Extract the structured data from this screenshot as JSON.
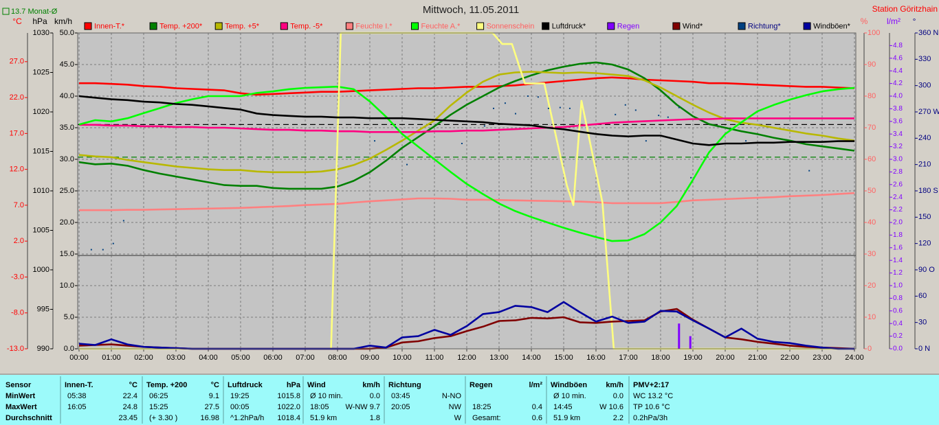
{
  "chart_data": {
    "type": "multi-axis-line",
    "title": "Mittwoch, 11.05.2011",
    "station_label": "Station Göritzhain",
    "xlim": [
      0,
      24
    ],
    "xticks": [
      {
        "value": 0,
        "label": "00:00"
      },
      {
        "value": 1,
        "label": "01:00"
      },
      {
        "value": 2,
        "label": "02:00"
      },
      {
        "value": 3,
        "label": "03:00"
      },
      {
        "value": 4,
        "label": "04:00"
      },
      {
        "value": 5,
        "label": "05:00"
      },
      {
        "value": 6,
        "label": "06:00"
      },
      {
        "value": 7,
        "label": "07:00"
      },
      {
        "value": 8,
        "label": "08:00"
      },
      {
        "value": 9,
        "label": "09:00"
      },
      {
        "value": 10,
        "label": "10:00"
      },
      {
        "value": 11,
        "label": "11:00"
      },
      {
        "value": 12,
        "label": "12:00"
      },
      {
        "value": 13,
        "label": "13:00"
      },
      {
        "value": 14,
        "label": "14:00"
      },
      {
        "value": 15,
        "label": "15:00"
      },
      {
        "value": 16,
        "label": "16:00"
      },
      {
        "value": 17,
        "label": "17:00"
      },
      {
        "value": 18,
        "label": "18:00"
      },
      {
        "value": 19,
        "label": "19:00"
      },
      {
        "value": 20,
        "label": "20:00"
      },
      {
        "value": 21,
        "label": "21:00"
      },
      {
        "value": 22,
        "label": "22:00"
      },
      {
        "value": 23,
        "label": "23:00"
      },
      {
        "value": 24,
        "label": "24:00"
      }
    ],
    "grid": true,
    "grid_axis": 2,
    "axes": [
      {
        "label": "°C",
        "color": "#ff0000",
        "lim": [
          -13,
          31
        ],
        "ticks": [
          {
            "value": -13,
            "label": "-13.0"
          },
          {
            "value": -8,
            "label": "-8.0"
          },
          {
            "value": -3,
            "label": "-3.0"
          },
          {
            "value": 2,
            "label": "2.0"
          },
          {
            "value": 7,
            "label": "7.0"
          },
          {
            "value": 12,
            "label": "12.0"
          },
          {
            "value": 17,
            "label": "17.0"
          },
          {
            "value": 22,
            "label": "22.0"
          },
          {
            "value": 27,
            "label": "27.0"
          }
        ]
      },
      {
        "label": "hPa",
        "color": "#000000",
        "lim": [
          990,
          1030
        ],
        "ticks": [
          990,
          995,
          1000,
          1005,
          1010,
          1015,
          1020,
          1025,
          1030
        ]
      },
      {
        "label": "km/h",
        "color": "#000000",
        "lim": [
          0,
          50
        ],
        "ticks": [
          {
            "value": 0,
            "label": "0.0"
          },
          {
            "value": 5,
            "label": "5.0"
          },
          {
            "value": 10,
            "label": "10.0"
          },
          {
            "value": 15,
            "label": "15.0"
          },
          {
            "value": 20,
            "label": "20.0"
          },
          {
            "value": 25,
            "label": "25.0"
          },
          {
            "value": 30,
            "label": "30.0"
          },
          {
            "value": 35,
            "label": "35.0"
          },
          {
            "value": 40,
            "label": "40.0"
          },
          {
            "value": 45,
            "label": "45.0"
          },
          {
            "value": 50,
            "label": "50.0"
          }
        ]
      },
      {
        "label": "%",
        "color": "#ff6060",
        "lim": [
          0,
          100
        ],
        "ticks": [
          0,
          10,
          20,
          30,
          40,
          50,
          60,
          70,
          80,
          90,
          100
        ]
      },
      {
        "label": "l/m²",
        "color": "#8000ff",
        "lim": [
          0,
          5
        ],
        "ticks": [
          {
            "value": 0,
            "label": "0.0"
          },
          0.2,
          0.4,
          0.6,
          0.8,
          {
            "value": 1,
            "label": "1.0"
          },
          1.2,
          1.4,
          1.6,
          1.8,
          {
            "value": 2,
            "label": "2.0"
          },
          2.2,
          2.4,
          2.6,
          2.8,
          {
            "value": 3,
            "label": "3.0"
          },
          3.2,
          3.4,
          3.6,
          3.8,
          {
            "value": 4,
            "label": "4.0"
          },
          4.2,
          4.4,
          4.6,
          4.8
        ]
      },
      {
        "label": "°",
        "color": "#000080",
        "lim": [
          0,
          360
        ],
        "ticks": [
          {
            "value": 0,
            "label": "0 N"
          },
          30,
          60,
          {
            "value": 90,
            "label": "90 O"
          },
          120,
          150,
          {
            "value": 180,
            "label": "180 S"
          },
          210,
          240,
          {
            "value": 270,
            "label": "270 W"
          },
          300,
          330,
          {
            "value": 360,
            "label": "360 N"
          }
        ]
      }
    ],
    "reference_lines": [
      {
        "value": 13.7,
        "label": "13.7 Monat-Ø",
        "axis": 0,
        "color": "#008000",
        "dashed": true
      },
      {
        "value": 1018.4,
        "axis": 1,
        "color": "#000000",
        "dashed": true
      },
      {
        "value": 0,
        "axis": 0,
        "color": "#505050",
        "dashed": false
      }
    ],
    "x": [
      0,
      0.5,
      1,
      1.5,
      2,
      2.5,
      3,
      3.5,
      4,
      4.5,
      5,
      5.5,
      6,
      6.5,
      7,
      7.5,
      8,
      8.5,
      9,
      9.5,
      10,
      10.5,
      11,
      11.5,
      12,
      12.5,
      13,
      13.5,
      14,
      14.5,
      15,
      15.5,
      16,
      16.5,
      17,
      17.5,
      18,
      18.5,
      19,
      19.5,
      20,
      20.5,
      21,
      21.5,
      22,
      22.5,
      23,
      23.5,
      24
    ],
    "series": [
      {
        "name": "Innen-T.*",
        "color": "#ff0000",
        "axis": 0,
        "style": "line",
        "values": [
          24.0,
          24.0,
          23.9,
          23.8,
          23.6,
          23.5,
          23.3,
          23.2,
          23.1,
          23.0,
          22.6,
          22.4,
          22.5,
          22.6,
          22.7,
          22.8,
          22.8,
          22.9,
          23.0,
          23.1,
          23.2,
          23.3,
          23.3,
          23.4,
          23.5,
          23.5,
          23.6,
          23.7,
          23.9,
          24.1,
          24.3,
          24.5,
          24.7,
          24.8,
          24.7,
          24.5,
          24.4,
          24.3,
          24.2,
          24.0,
          24.0,
          23.9,
          23.8,
          23.7,
          23.6,
          23.5,
          23.5,
          23.4,
          23.3
        ]
      },
      {
        "name": "Temp. +200*",
        "color": "#008000",
        "axis": 0,
        "style": "line",
        "values": [
          13.0,
          12.7,
          12.8,
          12.5,
          11.9,
          11.4,
          11.0,
          10.6,
          10.2,
          9.8,
          9.7,
          9.7,
          9.4,
          9.3,
          9.3,
          9.3,
          9.6,
          10.4,
          11.6,
          13.2,
          15.0,
          16.5,
          18.0,
          19.6,
          21.0,
          22.2,
          23.4,
          24.3,
          25.1,
          25.8,
          26.3,
          26.7,
          26.9,
          26.6,
          25.9,
          24.7,
          23.0,
          21.0,
          19.4,
          18.3,
          17.8,
          17.3,
          16.9,
          16.4,
          16.0,
          15.5,
          15.2,
          14.9,
          14.6
        ]
      },
      {
        "name": "Temp. +5*",
        "color": "#b8b800",
        "axis": 0,
        "style": "line",
        "values": [
          14.0,
          13.8,
          13.7,
          13.3,
          13.0,
          12.7,
          12.4,
          12.2,
          12.0,
          11.9,
          11.9,
          11.7,
          11.6,
          11.6,
          11.6,
          11.7,
          12.0,
          12.6,
          13.5,
          14.7,
          16.0,
          17.4,
          18.8,
          20.9,
          22.7,
          24.2,
          25.2,
          25.5,
          25.6,
          25.5,
          25.4,
          25.5,
          25.4,
          25.2,
          25.0,
          24.4,
          23.4,
          22.2,
          21.0,
          19.9,
          19.0,
          18.5,
          18.2,
          17.8,
          17.4,
          17.0,
          16.7,
          16.3,
          16.0
        ]
      },
      {
        "name": "Temp. -5*",
        "color": "#ff0080",
        "axis": 0,
        "style": "line",
        "values": [
          18.2,
          18.2,
          18.1,
          18.1,
          18.0,
          18.0,
          17.9,
          17.9,
          17.8,
          17.8,
          17.7,
          17.6,
          17.5,
          17.5,
          17.4,
          17.4,
          17.3,
          17.3,
          17.2,
          17.2,
          17.2,
          17.2,
          17.3,
          17.3,
          17.4,
          17.4,
          17.5,
          17.6,
          17.7,
          17.8,
          17.9,
          18.1,
          18.3,
          18.5,
          18.6,
          18.7,
          18.8,
          18.9,
          19.0,
          19.0,
          19.1,
          19.1,
          19.1,
          19.1,
          19.1,
          19.1,
          19.1,
          19.1,
          19.1
        ]
      },
      {
        "name": "Feuchte I.*",
        "color": "#ff8080",
        "axis": 3,
        "style": "line",
        "values": [
          43.9,
          43.9,
          43.9,
          44.0,
          44.0,
          44.1,
          44.2,
          44.3,
          44.4,
          44.5,
          44.6,
          44.8,
          45.0,
          45.2,
          45.5,
          45.7,
          45.9,
          46.3,
          46.7,
          47.0,
          47.3,
          47.6,
          47.6,
          47.5,
          47.2,
          47.2,
          47.1,
          47.0,
          46.9,
          46.8,
          46.7,
          46.6,
          46.4,
          46.1,
          46.1,
          46.1,
          46.1,
          46.5,
          47.0,
          47.2,
          47.4,
          47.6,
          47.8,
          48.0,
          48.3,
          48.5,
          48.7,
          49.0,
          49.3
        ]
      },
      {
        "name": "Feuchte A.*",
        "color": "#00ff00",
        "axis": 3,
        "style": "line",
        "values": [
          71.0,
          72.4,
          72.0,
          73.0,
          74.6,
          76.2,
          77.8,
          79.0,
          80.0,
          80.0,
          80.0,
          81.0,
          81.5,
          82.2,
          82.6,
          82.8,
          83.0,
          82.2,
          78.3,
          73.5,
          68.0,
          64.0,
          60.0,
          56.0,
          52.2,
          49.0,
          46.0,
          43.6,
          41.7,
          40.0,
          38.3,
          36.8,
          35.4,
          34.1,
          34.3,
          36.3,
          40.0,
          45.2,
          53.5,
          62.2,
          68.0,
          71.7,
          75.2,
          77.2,
          78.9,
          80.3,
          81.5,
          82.2,
          82.6
        ]
      },
      {
        "name": "Sonnenschein",
        "color": "#ffff80",
        "axis": 3,
        "style": "line",
        "x": [
          0,
          7.8,
          8.1,
          12.8,
          13.1,
          13.4,
          13.8,
          14.4,
          15.1,
          15.3,
          15.55,
          16.2,
          16.55,
          24
        ],
        "values": [
          0,
          0,
          100,
          100,
          96.5,
          96.5,
          84,
          84,
          51.7,
          45.5,
          78.5,
          46.3,
          0,
          0
        ]
      },
      {
        "name": "Luftdruck*",
        "color": "#000000",
        "axis": 1,
        "style": "line",
        "values": [
          1022.0,
          1021.8,
          1021.6,
          1021.5,
          1021.3,
          1021.2,
          1021.0,
          1020.9,
          1020.7,
          1020.5,
          1020.3,
          1019.8,
          1019.6,
          1019.5,
          1019.4,
          1019.4,
          1019.3,
          1019.3,
          1019.2,
          1019.2,
          1019.2,
          1019.1,
          1019.0,
          1018.9,
          1018.8,
          1018.7,
          1018.5,
          1018.4,
          1018.3,
          1018.0,
          1017.8,
          1017.5,
          1017.2,
          1017.0,
          1016.9,
          1017.0,
          1017.0,
          1016.5,
          1016.0,
          1015.8,
          1016.0,
          1016.0,
          1016.1,
          1016.1,
          1016.2,
          1016.2,
          1016.2,
          1016.3,
          1016.3
        ]
      },
      {
        "name": "Regen",
        "color": "#8000ff",
        "axis": 4,
        "style": "bar",
        "x": [
          18.57,
          18.92
        ],
        "values": [
          0.4,
          0.2
        ]
      },
      {
        "name": "Wind*",
        "color": "#800000",
        "axis": 2,
        "style": "line",
        "values": [
          0.5,
          0.6,
          0.7,
          0.5,
          0.3,
          0.2,
          0.1,
          0,
          0,
          0,
          0,
          0,
          0,
          0,
          0,
          0,
          0,
          0,
          0,
          0.2,
          1.0,
          1.2,
          1.7,
          2.0,
          2.8,
          3.5,
          4.4,
          4.5,
          4.9,
          4.8,
          5.0,
          4.2,
          4.1,
          4.3,
          4.4,
          4.5,
          5.9,
          6.3,
          4.6,
          3.2,
          1.8,
          1.5,
          1.1,
          0.8,
          0.5,
          0.3,
          0.2,
          0.1,
          0
        ]
      },
      {
        "name": "Richtung*",
        "color": "#004080",
        "axis": 5,
        "style": "dots",
        "x": [
          0.38,
          0.74,
          1.06,
          1.38,
          9.15,
          9.81,
          10.15,
          11.85,
          12.55,
          12.83,
          13.19,
          13.51,
          13.89,
          14.21,
          14.53,
          14.89,
          15.19,
          16.6,
          16.91,
          17.23,
          17.55,
          17.94,
          18.23,
          18.57,
          18.94,
          20.64,
          22.6
        ],
        "values": [
          113,
          113,
          120,
          146,
          237,
          252,
          210,
          234,
          254,
          274,
          280,
          268,
          288,
          287,
          274,
          275,
          274,
          267,
          278,
          272,
          237,
          266,
          264,
          275,
          195,
          237,
          203
        ]
      },
      {
        "name": "Windböen*",
        "color": "#0000a0",
        "axis": 2,
        "style": "line",
        "values": [
          0.8,
          0.6,
          1.5,
          0.7,
          0.3,
          0.2,
          0.1,
          0,
          0,
          0,
          0,
          0,
          0,
          0,
          0,
          0,
          0,
          0,
          0.5,
          0.2,
          1.8,
          2.0,
          3.0,
          2.2,
          3.6,
          5.5,
          5.8,
          6.8,
          6.6,
          5.8,
          7.4,
          5.8,
          4.3,
          5.1,
          4.1,
          4.3,
          6.0,
          5.9,
          4.5,
          3.2,
          1.8,
          3.2,
          1.6,
          1.1,
          0.9,
          0.5,
          0.2,
          0,
          0
        ]
      }
    ]
  },
  "stats_table": {
    "row_labels": [
      "Sensor",
      "MinWert",
      "MaxWert",
      "Durchschnitt"
    ],
    "groups": [
      {
        "name": "Innen-T.",
        "unit": "°C",
        "rows": [
          [
            "05:38",
            "22.4"
          ],
          [
            "16:05",
            "24.8"
          ],
          [
            null,
            "23.45"
          ]
        ]
      },
      {
        "name": "Temp. +200",
        "unit": "°C",
        "rows": [
          [
            "06:25",
            "9.1"
          ],
          [
            "15:25",
            "27.5"
          ],
          [
            "(+ 3.30 )",
            "16.98"
          ]
        ]
      },
      {
        "name": "Luftdruck",
        "unit": "hPa",
        "rows": [
          [
            "19:25",
            "1015.8"
          ],
          [
            "00:05",
            "1022.0"
          ],
          [
            "^1.2hPa/h",
            "1018.4"
          ]
        ]
      },
      {
        "name": "Wind",
        "unit": "km/h",
        "rows": [
          [
            "Ø 10 min.",
            "0.0"
          ],
          [
            "18:05",
            "W-NW 9.7"
          ],
          [
            "51.9 km",
            "1.8"
          ]
        ]
      },
      {
        "name": "Richtung",
        "unit": null,
        "rows": [
          [
            "03:45",
            "N-NO"
          ],
          [
            "20:05",
            "NW"
          ],
          [
            null,
            "W"
          ]
        ]
      },
      {
        "name": "Regen",
        "unit": "l/m²",
        "rows": [
          [
            null,
            null
          ],
          [
            "18:25",
            "0.4"
          ],
          [
            "Gesamt:",
            "0.6"
          ]
        ]
      },
      {
        "name": "Windböen",
        "unit": "km/h",
        "rows": [
          [
            "Ø 10 min.",
            "0.0"
          ],
          [
            "14:45",
            "W 10.6"
          ],
          [
            "51.9 km",
            "2.2"
          ]
        ]
      },
      {
        "name": "PMV+2:17",
        "unit": null,
        "rows": [
          [
            "WC 13.2 °C"
          ],
          [
            "TP 10.6 °C"
          ],
          [
            "0.2hPa/3h"
          ]
        ]
      }
    ]
  }
}
